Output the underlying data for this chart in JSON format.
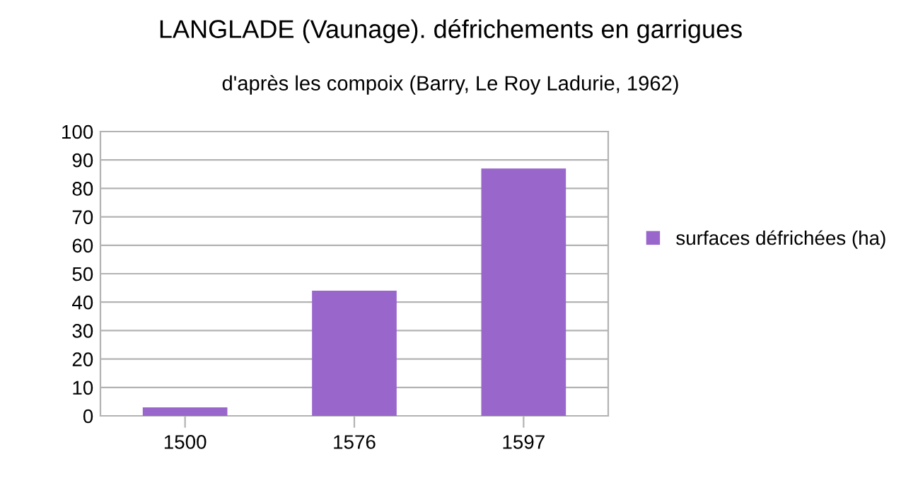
{
  "chart_data": {
    "type": "bar",
    "title": "LANGLADE (Vaunage). défrichements en garrigues",
    "subtitle": "d'après les compoix (Barry, Le Roy Ladurie, 1962)",
    "categories": [
      "1500",
      "1576",
      "1597"
    ],
    "series": [
      {
        "name": "surfaces défrichées (ha)",
        "color": "#9966cc",
        "values": [
          3,
          44,
          87
        ]
      }
    ],
    "ylim": [
      0,
      100
    ],
    "yticks": [
      0,
      10,
      20,
      30,
      40,
      50,
      60,
      70,
      80,
      90,
      100
    ],
    "grid": "y",
    "legend": "right"
  }
}
